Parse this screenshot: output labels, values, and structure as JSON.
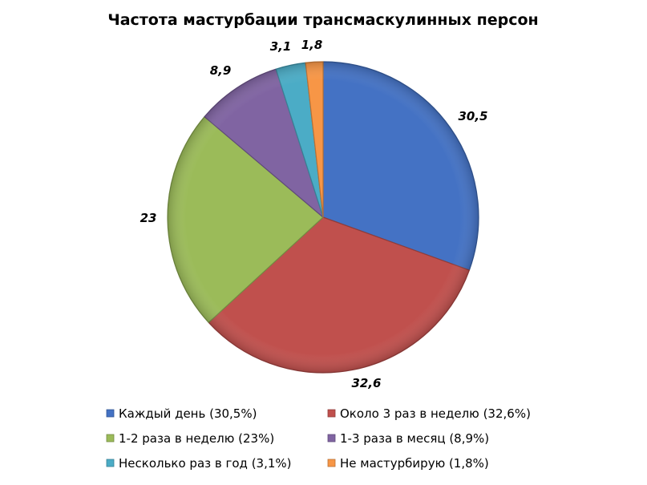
{
  "chart_data": {
    "type": "pie",
    "title": "Частота мастурбации трансмаскулинных персон",
    "legend_position": "bottom",
    "slices": [
      {
        "legend": "Каждый день (30,5%)",
        "label": "30,5",
        "value": 30.5,
        "color": "#4472C4"
      },
      {
        "legend": "Около 3 раз в неделю (32,6%)",
        "label": "32,6",
        "value": 32.6,
        "color": "#C0504D"
      },
      {
        "legend": "1-2 раза в неделю (23%)",
        "label": "23",
        "value": 23,
        "color": "#9BBB59"
      },
      {
        "legend": "1-3 раза в месяц (8,9%)",
        "label": "8,9",
        "value": 8.9,
        "color": "#8064A2"
      },
      {
        "legend": "Несколько раз в год (3,1%)",
        "label": "3,1",
        "value": 3.1,
        "color": "#4BACC6"
      },
      {
        "legend": "Не мастурбирую (1,8%)",
        "label": "1,8",
        "value": 1.8,
        "color": "#F79646"
      }
    ]
  }
}
